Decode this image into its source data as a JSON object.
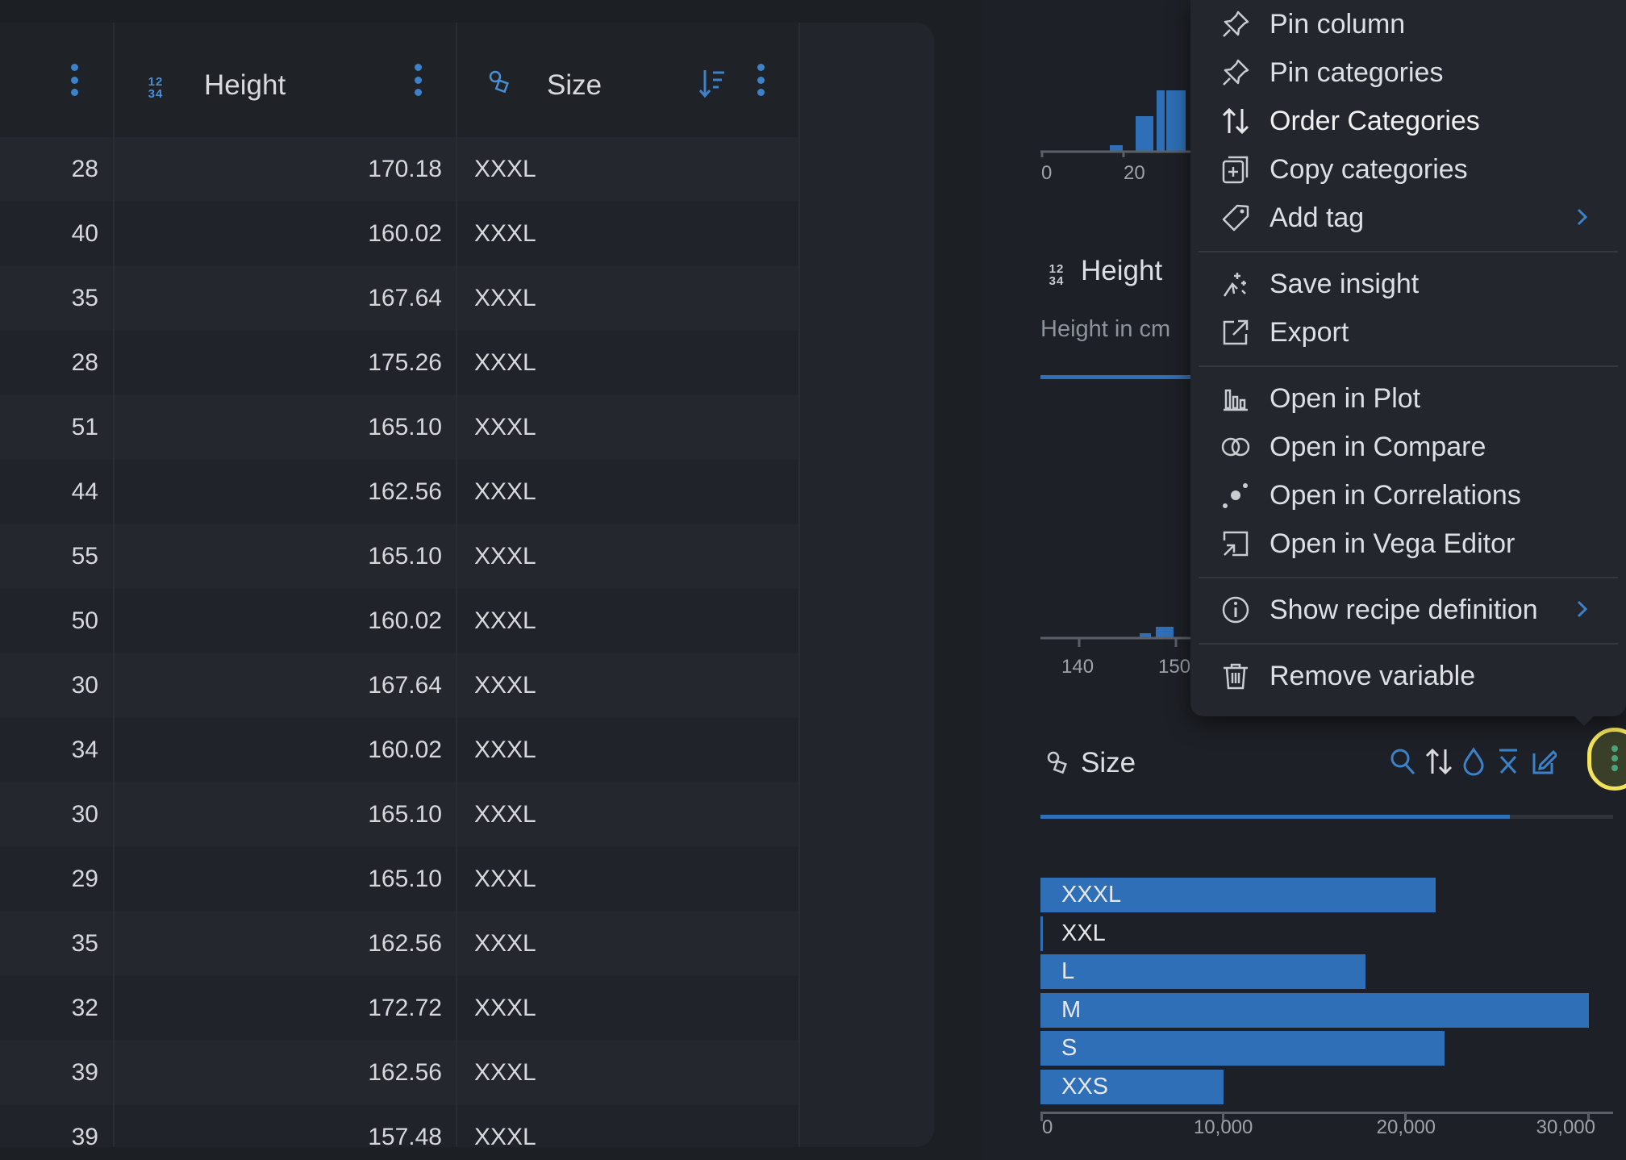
{
  "table": {
    "columns": [
      {
        "label": "",
        "type_icon": "none"
      },
      {
        "label": "Height",
        "type_icon": "numeric-type-icon"
      },
      {
        "label": "Size",
        "type_icon": "categorical-type-icon"
      }
    ],
    "rows": [
      [
        "28",
        "170.18",
        "XXXL"
      ],
      [
        "40",
        "160.02",
        "XXXL"
      ],
      [
        "35",
        "167.64",
        "XXXL"
      ],
      [
        "28",
        "175.26",
        "XXXL"
      ],
      [
        "51",
        "165.10",
        "XXXL"
      ],
      [
        "44",
        "162.56",
        "XXXL"
      ],
      [
        "55",
        "165.10",
        "XXXL"
      ],
      [
        "50",
        "160.02",
        "XXXL"
      ],
      [
        "30",
        "167.64",
        "XXXL"
      ],
      [
        "34",
        "160.02",
        "XXXL"
      ],
      [
        "30",
        "165.10",
        "XXXL"
      ],
      [
        "29",
        "165.10",
        "XXXL"
      ],
      [
        "35",
        "162.56",
        "XXXL"
      ],
      [
        "32",
        "172.72",
        "XXXL"
      ],
      [
        "39",
        "162.56",
        "XXXL"
      ],
      [
        "39",
        "157.48",
        "XXXL"
      ]
    ]
  },
  "panel": {
    "top_axis_ticks": [
      "0",
      "20"
    ],
    "height_card": {
      "title": "Height",
      "description": "Height in cm"
    },
    "height_axis_ticks": [
      "140",
      "150"
    ],
    "size_card": {
      "title": "Size"
    }
  },
  "menu": {
    "items": [
      {
        "label": "Pin column",
        "icon": "pin-icon"
      },
      {
        "label": "Pin categories",
        "icon": "pin-icon"
      },
      {
        "label": "Order Categories",
        "icon": "sort-arrows-icon",
        "highlighted": true
      },
      {
        "label": "Copy categories",
        "icon": "copy-icon"
      },
      {
        "label": "Add tag",
        "icon": "tag-icon",
        "submenu": true
      },
      {
        "label": "Save insight",
        "icon": "sparkle-icon"
      },
      {
        "label": "Export",
        "icon": "export-icon"
      },
      {
        "label": "Open in Plot",
        "icon": "bar-chart-icon"
      },
      {
        "label": "Open in Compare",
        "icon": "compare-icon"
      },
      {
        "label": "Open in Correlations",
        "icon": "correlations-icon"
      },
      {
        "label": "Open in Vega Editor",
        "icon": "vega-editor-icon"
      },
      {
        "label": "Show recipe definition",
        "icon": "info-icon",
        "submenu": true
      },
      {
        "label": "Remove variable",
        "icon": "trash-icon"
      }
    ]
  },
  "colors": {
    "accent": "#2f6fb7",
    "highlight": "#f3e35a",
    "icon_blue": "#3b82c9"
  },
  "chart_data": {
    "type": "bar",
    "orientation": "horizontal",
    "categories": [
      "XXXL",
      "XXL",
      "L",
      "M",
      "S",
      "XXS"
    ],
    "values": [
      21600,
      150,
      17800,
      30000,
      22100,
      10000
    ],
    "xlim": [
      0,
      30000
    ],
    "x_ticks": [
      "0",
      "10,000",
      "20,000",
      "30,000"
    ],
    "title": "Size"
  }
}
